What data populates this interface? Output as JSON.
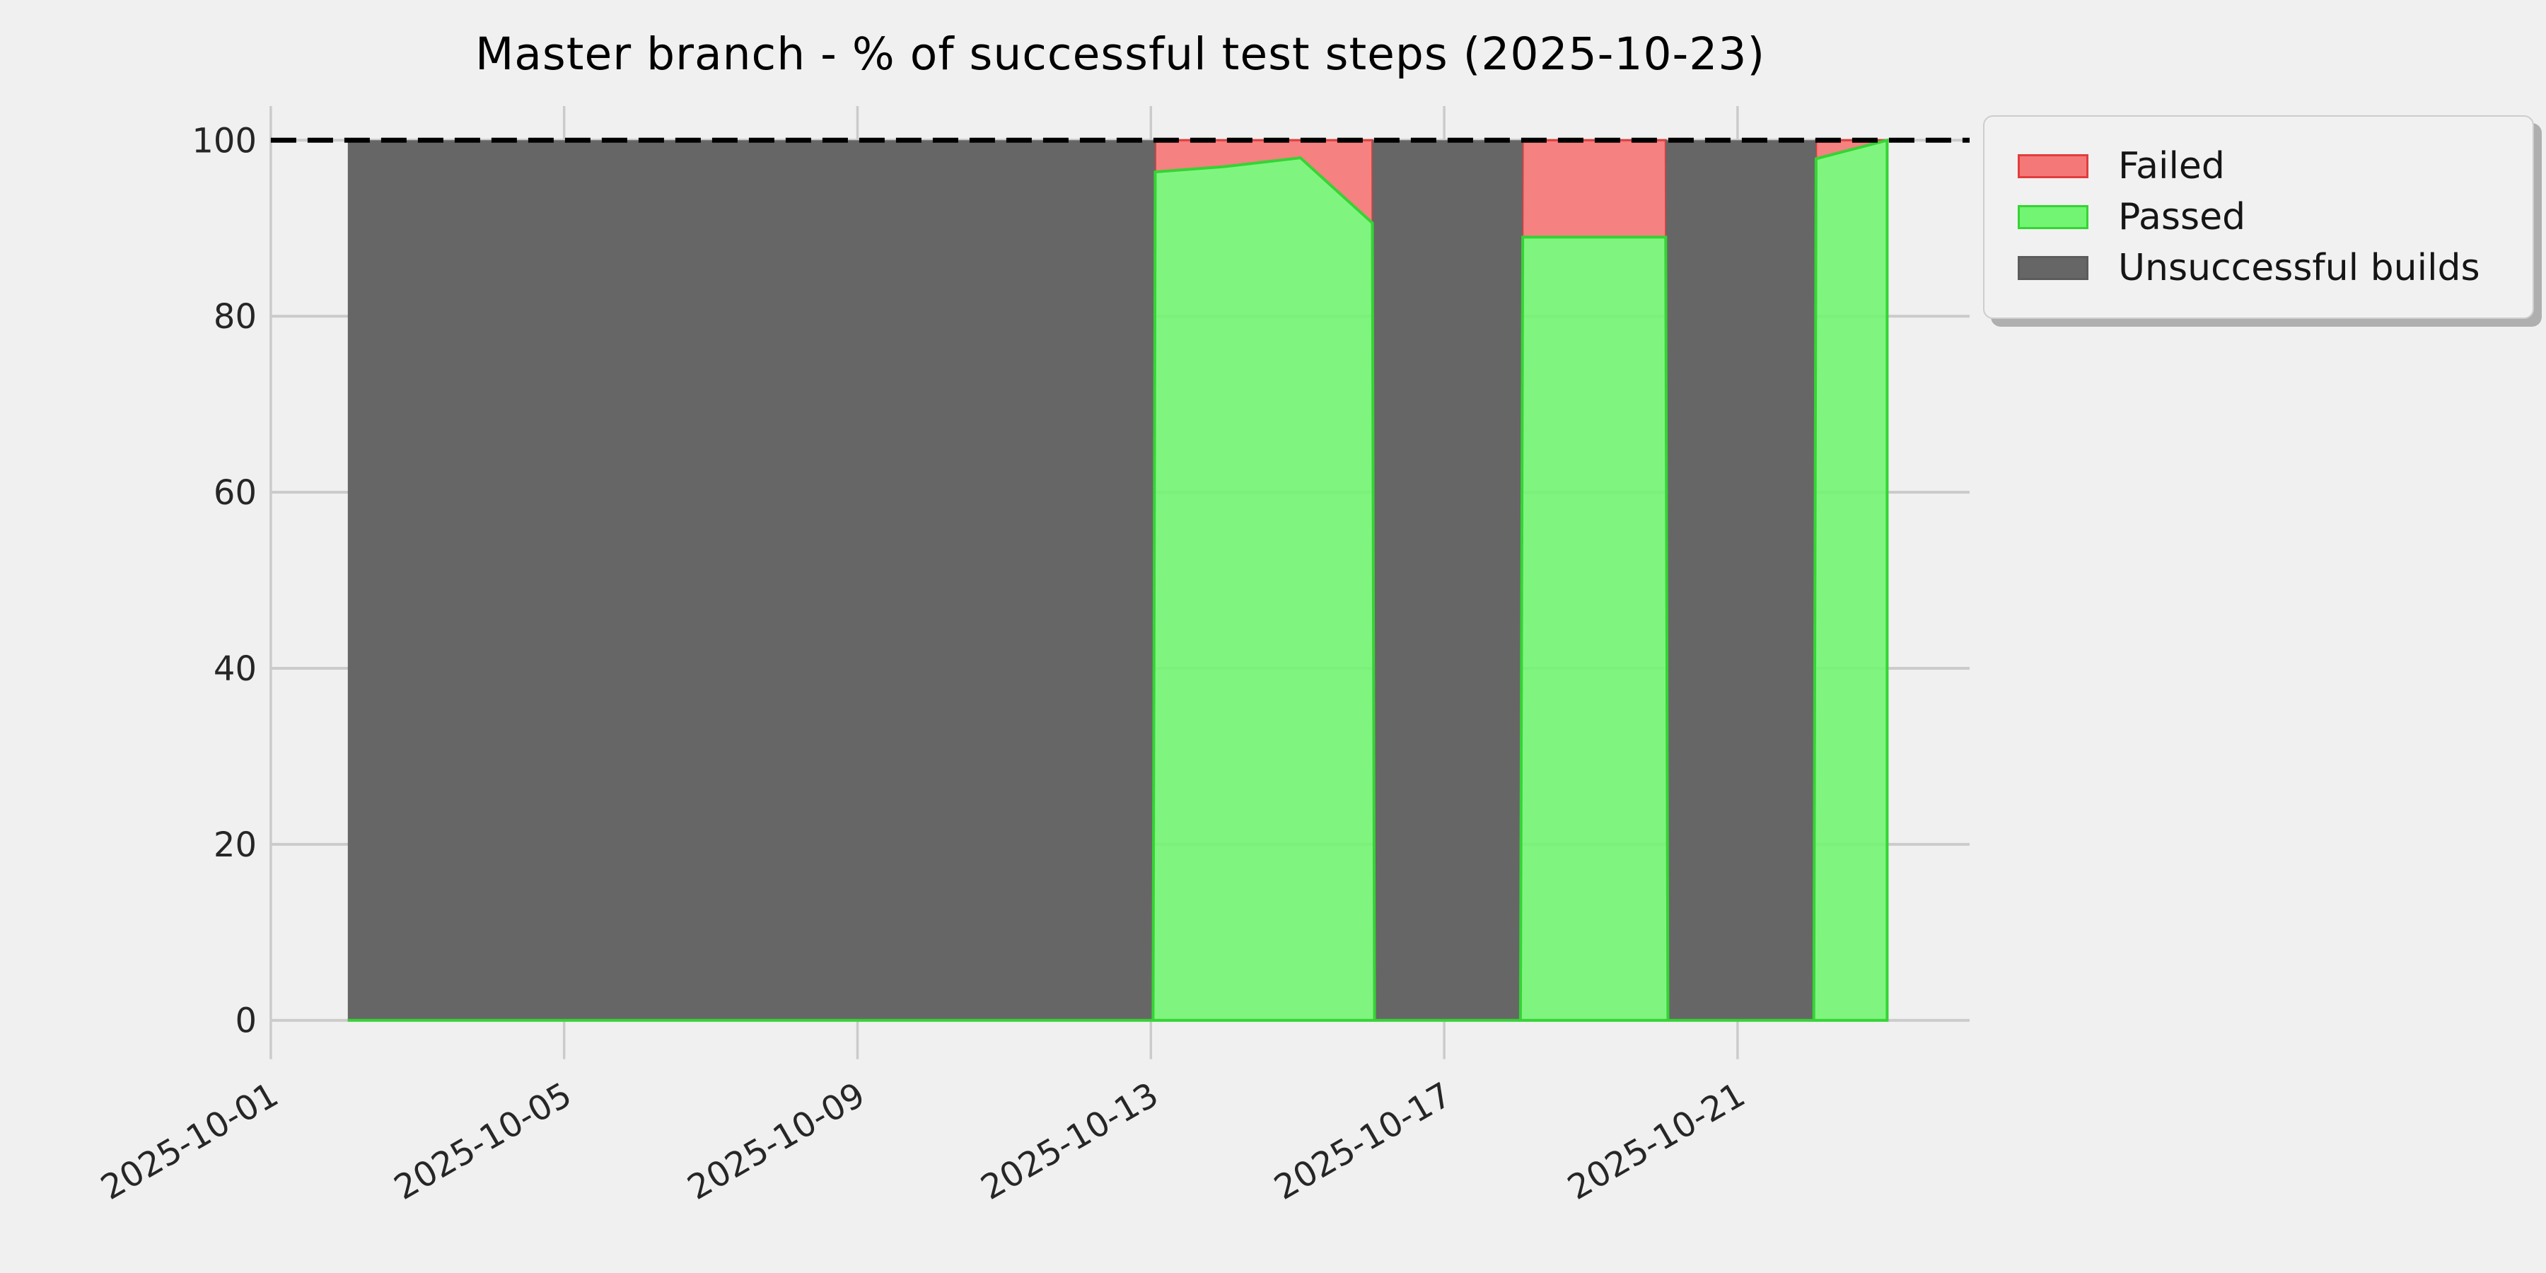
{
  "chart_data": {
    "type": "area",
    "title": "Master branch - % of successful test steps (2025-10-23)",
    "xlabel": "",
    "ylabel": "",
    "x_tick_labels": [
      "2025-10-01",
      "2025-10-05",
      "2025-10-09",
      "2025-10-13",
      "2025-10-17",
      "2025-10-21"
    ],
    "x_tick_days": [
      1,
      5,
      9,
      13,
      17,
      21
    ],
    "y_ticks": [
      0,
      20,
      40,
      60,
      80,
      100
    ],
    "ylim": [
      0,
      103.8
    ],
    "xlim_days": [
      1,
      24.2
    ],
    "grid": true,
    "reference_line": {
      "value": 100,
      "style": "dashed",
      "color": "#000000"
    },
    "series_names": [
      "Passed",
      "Failed",
      "Unsuccessful builds"
    ],
    "stack_points_day_passed_failed_unsuccessful": [
      [
        2.05,
        0,
        0,
        100
      ],
      [
        13.03,
        0,
        0,
        100
      ],
      [
        13.06,
        96.4,
        3.6,
        0
      ],
      [
        14.0,
        97.0,
        3.0,
        0
      ],
      [
        15.04,
        98.0,
        2.0,
        0
      ],
      [
        16.02,
        90.6,
        9.4,
        0
      ],
      [
        16.05,
        0,
        0,
        100
      ],
      [
        18.04,
        0,
        0,
        100
      ],
      [
        18.07,
        89.0,
        11.0,
        0
      ],
      [
        20.02,
        89.0,
        11.0,
        0
      ],
      [
        20.05,
        0,
        0,
        100
      ],
      [
        22.04,
        0,
        0,
        100
      ],
      [
        22.07,
        97.9,
        2.1,
        0
      ],
      [
        23.04,
        100,
        0,
        0
      ]
    ],
    "colors": {
      "passed_fill": "#72f572",
      "passed_edge": "#35d435",
      "failed_fill": "#f57878",
      "failed_edge": "#e23d3d",
      "unsuccessful_fill": "#666666",
      "background": "#f0f0f0",
      "gridline": "#cbcbcb",
      "tick_label": "#262626",
      "title_color": "#000000",
      "dashed_line": "#000000"
    },
    "legend": {
      "position": "upper right",
      "items": [
        {
          "label": "Failed",
          "fill": "#f57878",
          "edge": "#e23d3d"
        },
        {
          "label": "Passed",
          "fill": "#72f572",
          "edge": "#35d435"
        },
        {
          "label": "Unsuccessful builds",
          "fill": "#666666",
          "edge": "#5c5c5c"
        }
      ]
    }
  }
}
